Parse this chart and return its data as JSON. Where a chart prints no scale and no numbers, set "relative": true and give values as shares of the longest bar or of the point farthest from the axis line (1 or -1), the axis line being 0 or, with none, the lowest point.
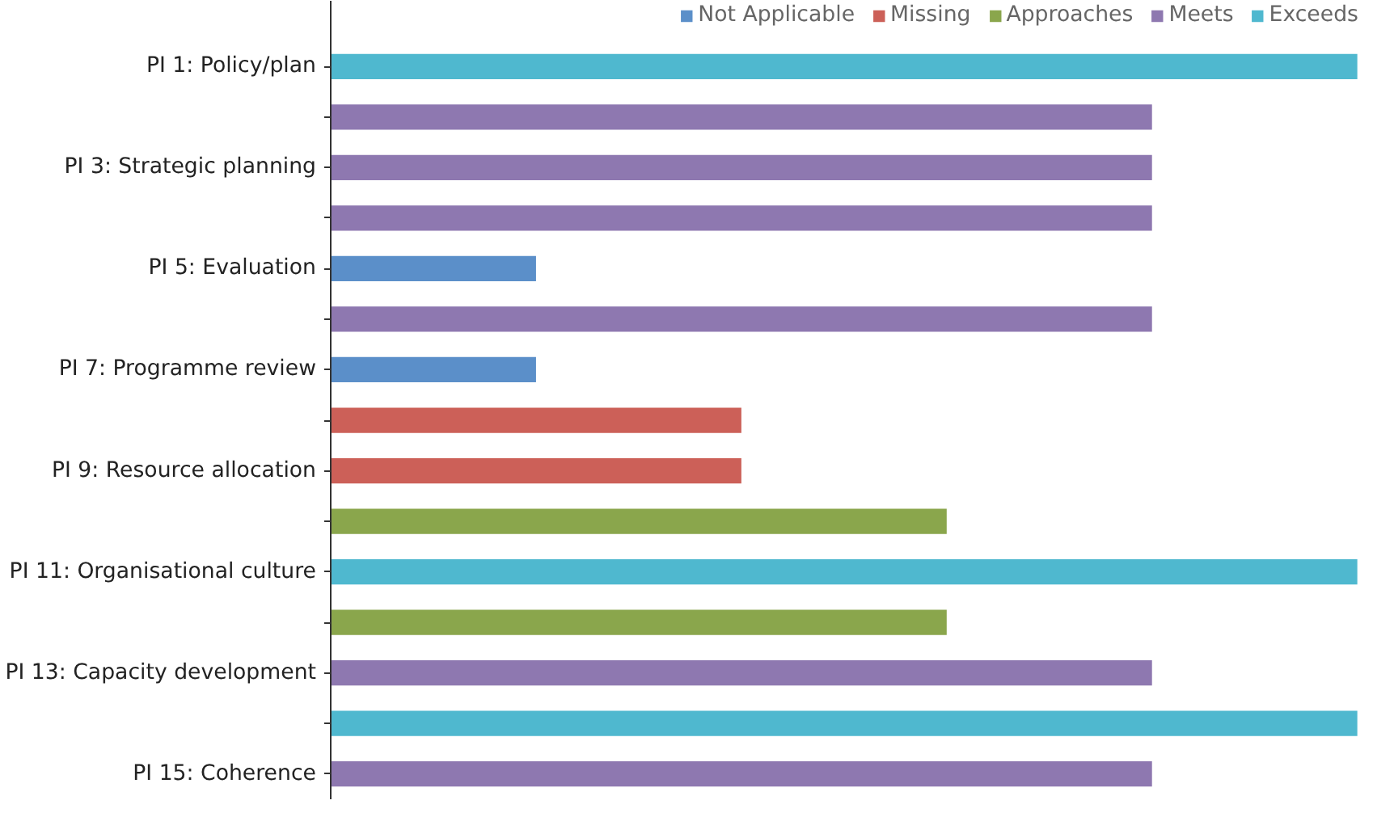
{
  "chart_data": {
    "type": "bar",
    "orientation": "horizontal",
    "relative": true,
    "legend": "top right",
    "grid": false,
    "categories": [
      "PI 1: Policy/plan",
      null,
      "PI 3: Strategic planning",
      null,
      "PI 5: Evaluation",
      null,
      "PI 7: Programme review",
      null,
      "PI 9: Resource allocation",
      null,
      "PI 11: Organisational culture",
      null,
      "PI 13: Capacity development",
      null,
      "PI 15: Coherence"
    ],
    "series": [
      {
        "name": "Not Applicable",
        "color": "#5b8fc9",
        "values": [
          null,
          null,
          null,
          null,
          0.2,
          null,
          0.2,
          null,
          null,
          null,
          null,
          null,
          null,
          null,
          null
        ]
      },
      {
        "name": "Missing",
        "color": "#cc6058",
        "values": [
          null,
          null,
          null,
          null,
          null,
          null,
          null,
          0.4,
          0.4,
          null,
          null,
          null,
          null,
          null,
          null
        ]
      },
      {
        "name": "Approaches",
        "color": "#8aa64c",
        "values": [
          null,
          null,
          null,
          null,
          null,
          null,
          null,
          null,
          null,
          0.6,
          null,
          0.6,
          null,
          null,
          null
        ]
      },
      {
        "name": "Meets",
        "color": "#8e78b0",
        "values": [
          null,
          0.8,
          0.8,
          0.8,
          null,
          0.8,
          null,
          null,
          null,
          null,
          null,
          null,
          0.8,
          null,
          0.8
        ]
      },
      {
        "name": "Exceeds",
        "color": "#4fb8cf",
        "values": [
          1,
          null,
          null,
          null,
          null,
          null,
          null,
          null,
          null,
          null,
          1,
          null,
          null,
          1,
          null
        ]
      }
    ]
  }
}
